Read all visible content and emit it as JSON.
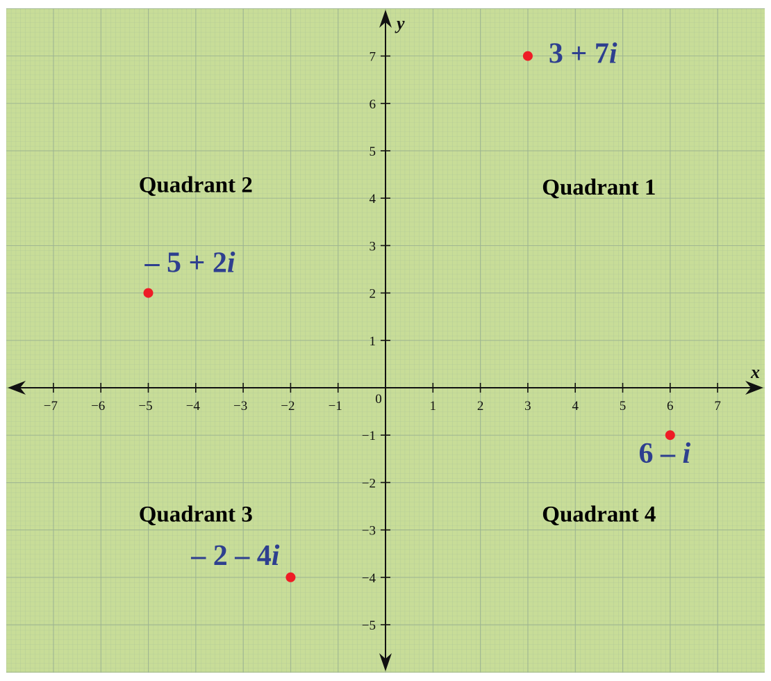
{
  "chart_data": {
    "type": "scatter",
    "title": "",
    "xlabel": "x",
    "ylabel": "y",
    "xlim": [
      -7.9,
      7.9
    ],
    "ylim": [
      -5.9,
      7.8
    ],
    "grid": true,
    "x_ticks": [
      -7,
      -6,
      -5,
      -4,
      -3,
      -2,
      -1,
      1,
      2,
      3,
      4,
      5,
      6,
      7
    ],
    "y_ticks": [
      -5,
      -4,
      -3,
      -2,
      -1,
      1,
      2,
      3,
      4,
      5,
      6,
      7
    ],
    "x_tick_labels": [
      "−7",
      "−6",
      "−5",
      "−4",
      "−3",
      "−2",
      "−1",
      "1",
      "2",
      "3",
      "4",
      "5",
      "6",
      "7"
    ],
    "y_tick_labels": [
      "−5",
      "−4",
      "−3",
      "−2",
      "−1",
      "1",
      "2",
      "3",
      "4",
      "5",
      "6",
      "7"
    ],
    "origin_label": "0",
    "quadrant_labels": [
      {
        "text": "Quadrant 1",
        "x": 4.5,
        "y": 4.25
      },
      {
        "text": "Quadrant 2",
        "x": -4,
        "y": 4.3
      },
      {
        "text": "Quadrant 3",
        "x": -4,
        "y": -2.65
      },
      {
        "text": "Quadrant 4",
        "x": 4.5,
        "y": -2.65
      }
    ],
    "points": [
      {
        "x": 3,
        "y": 7,
        "label": "3 + 7i",
        "label_real": "3 + 7",
        "label_imag": "i"
      },
      {
        "x": -5,
        "y": 2,
        "label": "– 5 + 2i",
        "label_real": "– 5 + 2",
        "label_imag": "i"
      },
      {
        "x": 6,
        "y": -1,
        "label": "6 – i",
        "label_real": "6 – ",
        "label_imag": "i"
      },
      {
        "x": -2,
        "y": -4,
        "label": "– 2 – 4i",
        "label_real": "– 2 – 4",
        "label_imag": "i"
      }
    ],
    "colors": {
      "background": "#c8dd98",
      "grid_fine": "#a9c197",
      "grid_major": "#9cb391",
      "axis": "#111111",
      "point": "#ee1c25",
      "point_label": "#2e3f8f"
    }
  }
}
